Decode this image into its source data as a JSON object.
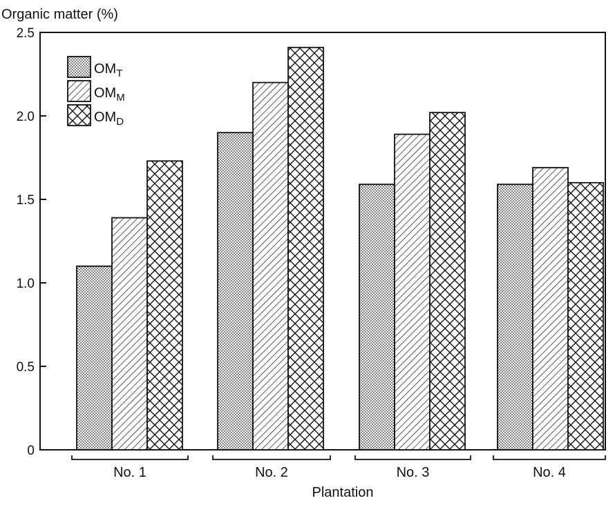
{
  "chart_data": {
    "type": "bar",
    "ylabel": "Organic matter (%)",
    "xlabel": "Plantation",
    "ylim": [
      0,
      2.5
    ],
    "yticks": [
      {
        "value": 0,
        "label": "0"
      },
      {
        "value": 0.5,
        "label": "0.5"
      },
      {
        "value": 1.0,
        "label": "1.0"
      },
      {
        "value": 1.5,
        "label": "1.5"
      },
      {
        "value": 2.0,
        "label": "2.0"
      },
      {
        "value": 2.5,
        "label": "2.5"
      }
    ],
    "categories": [
      "No. 1",
      "No. 2",
      "No. 3",
      "No. 4"
    ],
    "series": [
      {
        "name": "OM",
        "subscript": "T",
        "pattern": "dots",
        "values": [
          1.1,
          1.9,
          1.59,
          1.59
        ]
      },
      {
        "name": "OM",
        "subscript": "M",
        "pattern": "hatch",
        "values": [
          1.39,
          2.2,
          1.89,
          1.69
        ]
      },
      {
        "name": "OM",
        "subscript": "D",
        "pattern": "cross",
        "values": [
          1.73,
          2.41,
          2.02,
          1.6
        ]
      }
    ],
    "legend_position": "top-left",
    "grid": false,
    "colors": {
      "ink": "#111111",
      "fill": "#ffffff"
    }
  }
}
